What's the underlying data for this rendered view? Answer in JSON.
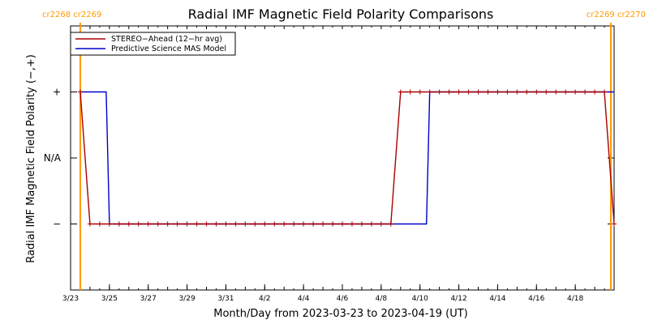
{
  "chart_data": {
    "type": "line",
    "title": "Radial IMF Magnetic Field Polarity Comparisons",
    "xlabel": "Month/Day from 2023-03-23 to 2023-04-19 (UT)",
    "ylabel": "Radial IMF Magnetic Field Polarity (−,+)",
    "x_range": [
      "2023-03-23",
      "2023-04-19"
    ],
    "y_categories": [
      "−",
      "N/A",
      "+"
    ],
    "y_values_map": {
      "−": -1,
      "N/A": 0,
      "+": 1
    },
    "ylim": [
      -2,
      2
    ],
    "x_tick_labels": [
      {
        "date": "2023-03-23",
        "label": "3/23"
      },
      {
        "date": "2023-03-25",
        "label": "3/25"
      },
      {
        "date": "2023-03-27",
        "label": "3/27"
      },
      {
        "date": "2023-03-29",
        "label": "3/29"
      },
      {
        "date": "2023-03-31",
        "label": "3/31"
      },
      {
        "date": "2023-04-02",
        "label": "4/2"
      },
      {
        "date": "2023-04-04",
        "label": "4/4"
      },
      {
        "date": "2023-04-06",
        "label": "4/6"
      },
      {
        "date": "2023-04-08",
        "label": "4/8"
      },
      {
        "date": "2023-04-10",
        "label": "4/10"
      },
      {
        "date": "2023-04-12",
        "label": "4/12"
      },
      {
        "date": "2023-04-14",
        "label": "4/14"
      },
      {
        "date": "2023-04-16",
        "label": "4/16"
      },
      {
        "date": "2023-04-18",
        "label": "4/18"
      }
    ],
    "carrington_markers": [
      {
        "date": "2023-03-23 12:00",
        "labels": [
          "cr2268",
          "cr2269"
        ],
        "align": "left"
      },
      {
        "date": "2023-04-19 20:00",
        "labels": [
          "cr2269",
          "cr2270"
        ],
        "align": "right"
      }
    ],
    "series": [
      {
        "name": "STEREO−Ahead (12−hr avg)",
        "color": "#aa0000",
        "markers": true,
        "points": [
          [
            "2023-03-23 12:00",
            1
          ],
          [
            "2023-03-24 00:00",
            -1
          ],
          [
            "2023-03-24 12:00",
            -1
          ],
          [
            "2023-03-25 00:00",
            -1
          ],
          [
            "2023-03-25 12:00",
            -1
          ],
          [
            "2023-03-26 00:00",
            -1
          ],
          [
            "2023-03-26 12:00",
            -1
          ],
          [
            "2023-03-27 00:00",
            -1
          ],
          [
            "2023-03-27 12:00",
            -1
          ],
          [
            "2023-03-28 00:00",
            -1
          ],
          [
            "2023-03-28 12:00",
            -1
          ],
          [
            "2023-03-29 00:00",
            -1
          ],
          [
            "2023-03-29 12:00",
            -1
          ],
          [
            "2023-03-30 00:00",
            -1
          ],
          [
            "2023-03-30 12:00",
            -1
          ],
          [
            "2023-03-31 00:00",
            -1
          ],
          [
            "2023-03-31 12:00",
            -1
          ],
          [
            "2023-04-01 00:00",
            -1
          ],
          [
            "2023-04-01 12:00",
            -1
          ],
          [
            "2023-04-02 00:00",
            -1
          ],
          [
            "2023-04-02 12:00",
            -1
          ],
          [
            "2023-04-03 00:00",
            -1
          ],
          [
            "2023-04-03 12:00",
            -1
          ],
          [
            "2023-04-04 00:00",
            -1
          ],
          [
            "2023-04-04 12:00",
            -1
          ],
          [
            "2023-04-05 00:00",
            -1
          ],
          [
            "2023-04-05 12:00",
            -1
          ],
          [
            "2023-04-06 00:00",
            -1
          ],
          [
            "2023-04-06 12:00",
            -1
          ],
          [
            "2023-04-07 00:00",
            -1
          ],
          [
            "2023-04-07 12:00",
            -1
          ],
          [
            "2023-04-08 00:00",
            -1
          ],
          [
            "2023-04-08 12:00",
            -1
          ],
          [
            "2023-04-09 00:00",
            1
          ],
          [
            "2023-04-09 12:00",
            1
          ],
          [
            "2023-04-10 00:00",
            1
          ],
          [
            "2023-04-10 12:00",
            1
          ],
          [
            "2023-04-11 00:00",
            1
          ],
          [
            "2023-04-11 12:00",
            1
          ],
          [
            "2023-04-12 00:00",
            1
          ],
          [
            "2023-04-12 12:00",
            1
          ],
          [
            "2023-04-13 00:00",
            1
          ],
          [
            "2023-04-13 12:00",
            1
          ],
          [
            "2023-04-14 00:00",
            1
          ],
          [
            "2023-04-14 12:00",
            1
          ],
          [
            "2023-04-15 00:00",
            1
          ],
          [
            "2023-04-15 12:00",
            1
          ],
          [
            "2023-04-16 00:00",
            1
          ],
          [
            "2023-04-16 12:00",
            1
          ],
          [
            "2023-04-17 00:00",
            1
          ],
          [
            "2023-04-17 12:00",
            1
          ],
          [
            "2023-04-18 00:00",
            1
          ],
          [
            "2023-04-18 12:00",
            1
          ],
          [
            "2023-04-19 00:00",
            1
          ],
          [
            "2023-04-19 12:00",
            1
          ],
          [
            "2023-04-20 00:00",
            -1
          ]
        ]
      },
      {
        "name": "Predictive Science MAS Model",
        "color": "#0000cc",
        "markers": false,
        "points": [
          [
            "2023-03-23 12:00",
            1
          ],
          [
            "2023-03-24 20:00",
            1
          ],
          [
            "2023-03-25 00:00",
            -1
          ],
          [
            "2023-04-10 08:00",
            -1
          ],
          [
            "2023-04-10 12:00",
            1
          ],
          [
            "2023-04-20 00:00",
            1
          ]
        ]
      }
    ],
    "legend_position": "top-left",
    "grid": false
  }
}
